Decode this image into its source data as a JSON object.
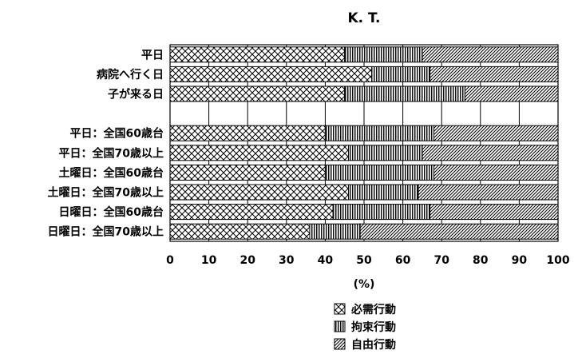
{
  "chart_data": {
    "type": "bar",
    "orientation": "horizontal",
    "stacked": true,
    "title": "K. T.",
    "xlabel": "(%)",
    "xlim": [
      0,
      100
    ],
    "xticks": [
      "0",
      "10",
      "20",
      "30",
      "40",
      "50",
      "60",
      "70",
      "80",
      "90",
      "100"
    ],
    "grid": true,
    "legend_position": "bottom-center",
    "categories": [
      "平日",
      "病院へ行く日",
      "子が来る日",
      "",
      "平日：全国60歳台",
      "平日：全国70歳以上",
      "土曜日：全国60歳台",
      "土曜日：全国70歳以上",
      "日曜日：全国60歳台",
      "日曜日：全国70歳以上"
    ],
    "series": [
      {
        "name": "必需行動",
        "pattern": "crosshatch",
        "values": [
          45,
          52,
          45,
          null,
          40,
          46,
          40,
          46,
          42,
          36
        ]
      },
      {
        "name": "拘束行動",
        "pattern": "vertical",
        "values": [
          20,
          15,
          31,
          null,
          28,
          19,
          28,
          18,
          25,
          13
        ]
      },
      {
        "name": "自由行動",
        "pattern": "diagonal",
        "values": [
          35,
          33,
          24,
          null,
          32,
          35,
          32,
          36,
          33,
          51
        ]
      }
    ]
  }
}
